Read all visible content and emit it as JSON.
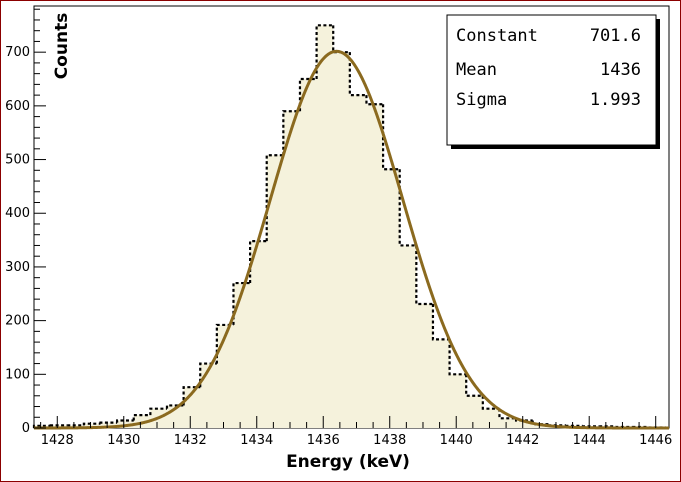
{
  "chart_data": {
    "type": "histogram",
    "xlabel": "Energy (keV)",
    "ylabel": "Counts",
    "xlim": [
      1427.3,
      1446.4
    ],
    "ylim": [
      0,
      786
    ],
    "x_ticks": [
      1428,
      1430,
      1432,
      1434,
      1436,
      1438,
      1440,
      1442,
      1444,
      1446
    ],
    "y_ticks": [
      0,
      100,
      200,
      300,
      400,
      500,
      600,
      700
    ],
    "bin_edges": [
      1427.3,
      1427.8,
      1428.3,
      1428.8,
      1429.3,
      1429.8,
      1430.3,
      1430.8,
      1431.3,
      1431.8,
      1432.3,
      1432.8,
      1433.3,
      1433.8,
      1434.3,
      1434.8,
      1435.3,
      1435.8,
      1436.3,
      1436.8,
      1437.3,
      1437.8,
      1438.3,
      1438.8,
      1439.3,
      1439.8,
      1440.3,
      1440.8,
      1441.3,
      1441.8,
      1442.3,
      1442.8,
      1443.3,
      1443.8,
      1444.3,
      1444.8,
      1445.3,
      1445.8,
      1446.3
    ],
    "bin_counts": [
      4,
      5,
      5,
      8,
      10,
      14,
      24,
      36,
      42,
      76,
      120,
      192,
      270,
      348,
      508,
      590,
      650,
      750,
      700,
      620,
      603,
      482,
      340,
      231,
      165,
      100,
      60,
      36,
      18,
      14,
      7,
      5,
      4,
      3,
      3,
      2,
      2,
      1
    ],
    "fit": {
      "function": "gaus",
      "constant": 701.6,
      "mean": 1436.4,
      "sigma": 1.993
    },
    "stats": [
      {
        "label": "Constant",
        "value": "701.6"
      },
      {
        "label": "Mean",
        "value": "1436"
      },
      {
        "label": "Sigma",
        "value": "1.993"
      }
    ],
    "colors": {
      "frame": "#8b0000",
      "fill": "#f5f2dc",
      "histogram": "#000000",
      "fit_line": "#8b6a1f"
    }
  }
}
